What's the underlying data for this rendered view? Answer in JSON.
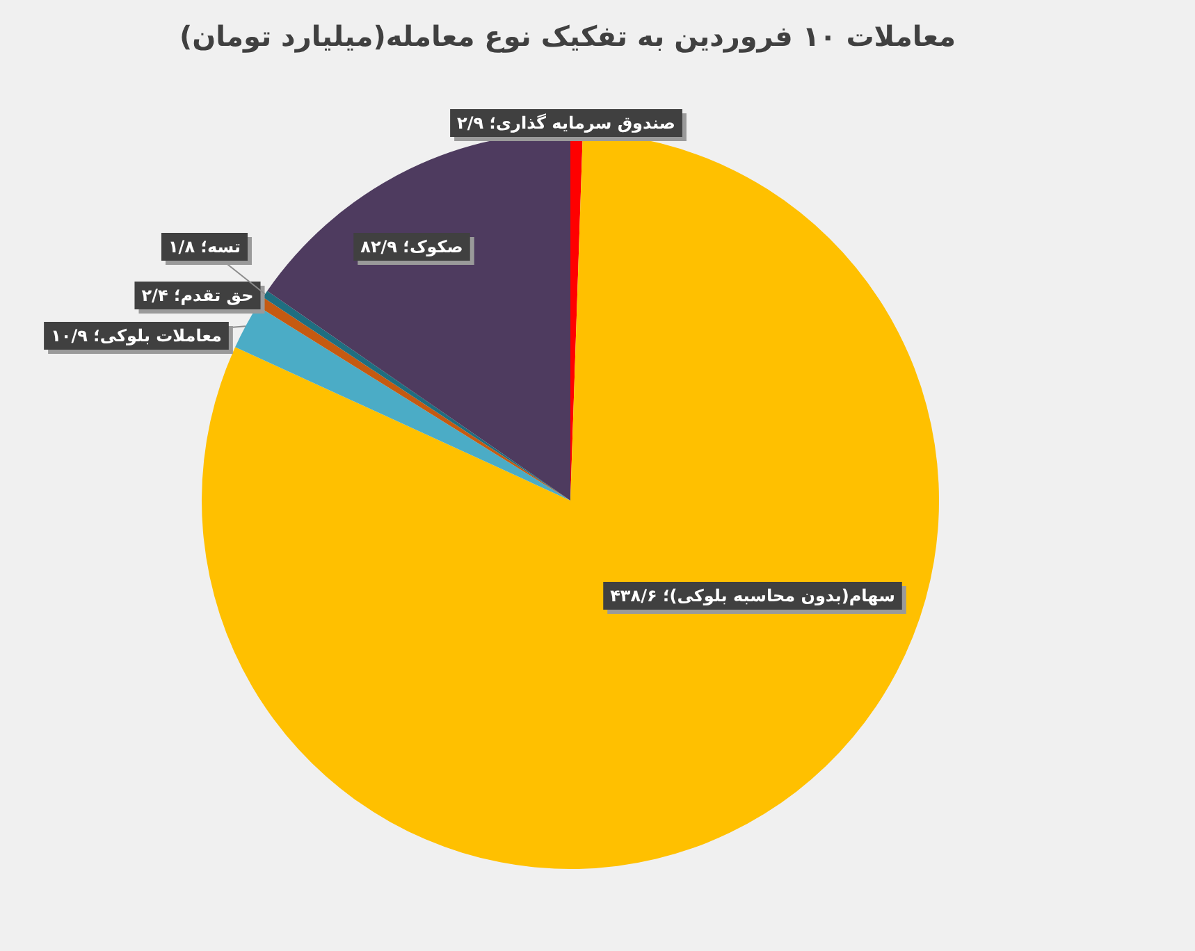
{
  "chart_data": {
    "type": "pie",
    "title": "معاملات ۱۰ فروردین به تفکیک نوع معامله(میلیارد تومان)",
    "categories": [
      "صندوق سرمایه گذاری؛ ۲/۹",
      "سهام(بدون محاسبه بلوکی)؛ ۴۳۸/۶",
      "معاملات بلوکی؛ ۱۰/۹",
      "حق تقدم؛ ۲/۴",
      "تسه؛ ۱/۸",
      "صکوک؛ ۸۲/۹"
    ],
    "values": [
      2.9,
      438.6,
      10.9,
      2.4,
      1.8,
      82.9
    ],
    "colors": [
      "#ff0000",
      "#ffc000",
      "#4bacc6",
      "#c55a11",
      "#1f6e80",
      "#4e3b5f"
    ]
  }
}
